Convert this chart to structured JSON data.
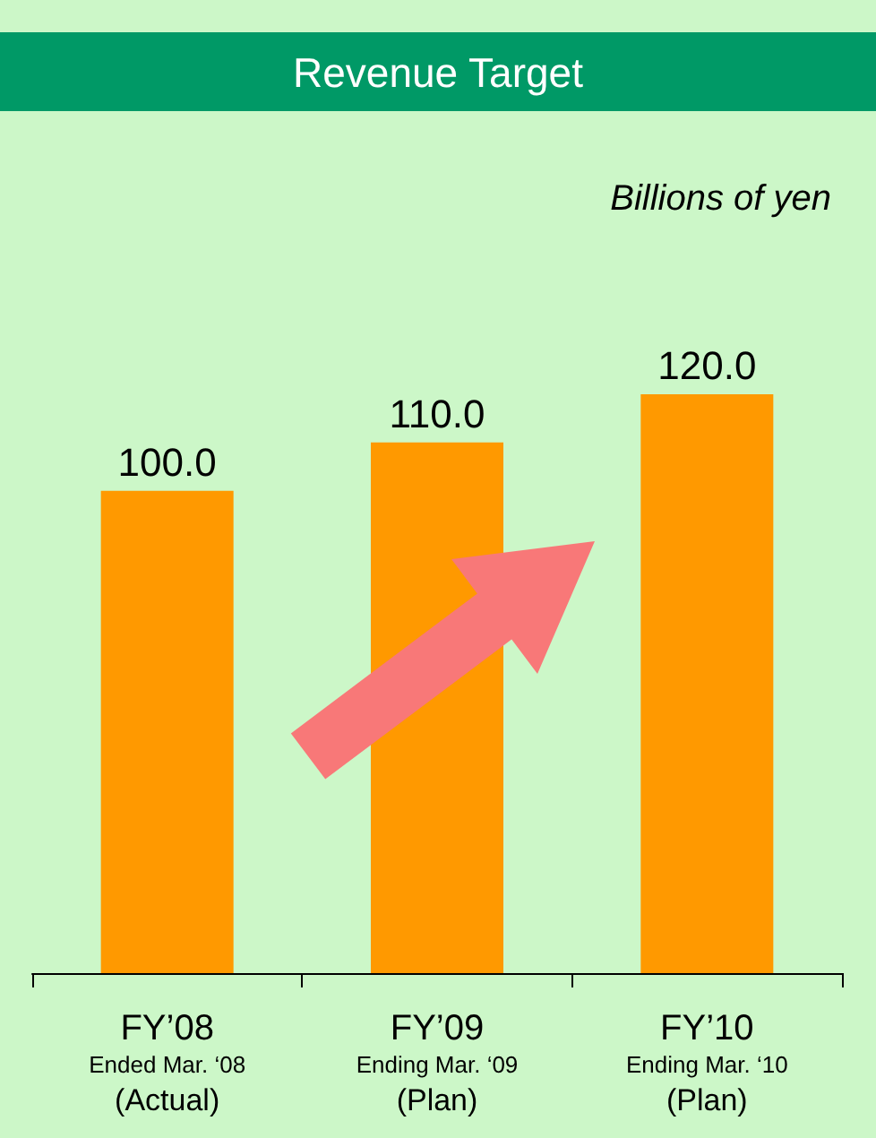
{
  "chart_data": {
    "type": "bar",
    "title": "Revenue Target",
    "annotations": [
      "Billions of yen"
    ],
    "categories": [
      "FY’08\nEnded Mar. ‘08\n(Actual)",
      "FY’09\nEnding Mar. ‘09\n(Plan)",
      "FY’10\nEnding Mar. ‘10\n(Plan)"
    ],
    "values": [
      100.0,
      110.0,
      120.0
    ],
    "value_labels": [
      "100.0",
      "110.0",
      "120.0"
    ],
    "color": "#ff9900"
  }
}
